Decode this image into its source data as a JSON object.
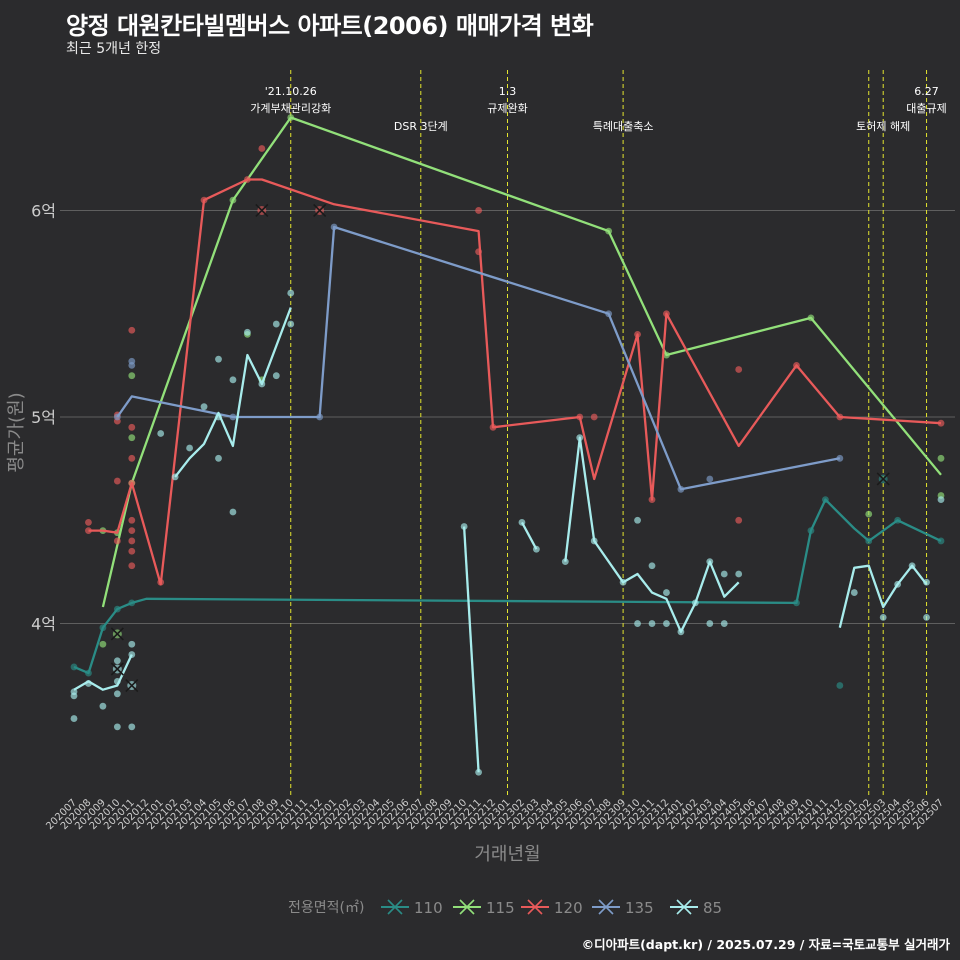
{
  "title": "양정 대원칸타빌멤버스 아파트(2006) 매매가격 변화",
  "subtitle": "최근 5개년 한정",
  "credit": "©디아파트(dapt.kr) / 2025.07.29 / 자료=국토교통부 실거래가",
  "chart_data": {
    "type": "line",
    "xlabel": "거래년월",
    "ylabel": "평균가(원)",
    "x": [
      "202007",
      "202008",
      "202009",
      "202010",
      "202011",
      "202012",
      "202101",
      "202102",
      "202103",
      "202104",
      "202105",
      "202106",
      "202107",
      "202108",
      "202109",
      "202110",
      "202111",
      "202112",
      "202201",
      "202202",
      "202203",
      "202204",
      "202205",
      "202206",
      "202207",
      "202208",
      "202209",
      "202210",
      "202211",
      "202212",
      "202301",
      "202302",
      "202303",
      "202304",
      "202305",
      "202306",
      "202307",
      "202308",
      "202309",
      "202310",
      "202311",
      "202312",
      "202401",
      "202402",
      "202403",
      "202404",
      "202405",
      "202406",
      "202407",
      "202408",
      "202409",
      "202410",
      "202411",
      "202412",
      "202501",
      "202502",
      "202503",
      "202504",
      "202505",
      "202506",
      "202507"
    ],
    "y_ticks": [
      {
        "value": 40000,
        "label": "4억"
      },
      {
        "value": 50000,
        "label": "5억"
      },
      {
        "value": 60000,
        "label": "6억"
      }
    ],
    "ylim": [
      31700,
      66800
    ],
    "grid": "horizontal",
    "legend": {
      "title": "전용면적(㎡)",
      "position": "bottom"
    },
    "colors": {
      "110": "#2a8c86",
      "115": "#92e07a",
      "120": "#e85a5a",
      "135": "#7e9cc9",
      "85": "#a8ecec",
      "event_line": "#e4e52e",
      "grid": "#5f5f5f",
      "text": "#cccccc"
    },
    "events": [
      {
        "x": "202110",
        "label": "'21.10.26\n가계부채관리강화"
      },
      {
        "x": "202207",
        "label": "DSR 3단계"
      },
      {
        "x": "202301",
        "label": "1.3\n규제완화"
      },
      {
        "x": "202309",
        "label": "특례대출축소"
      },
      {
        "x": "202502",
        "label": ""
      },
      {
        "x": "202503",
        "label": "토허제 해제"
      },
      {
        "x": "202506",
        "label": "6.27\n대출규제"
      }
    ],
    "series": [
      {
        "name": "110",
        "line": [
          [
            "202007",
            37900
          ],
          [
            "202008",
            37600
          ],
          [
            "202009",
            39800
          ],
          [
            "202010",
            40700
          ],
          [
            "202011",
            41000
          ],
          [
            "202012",
            41200
          ],
          [
            "202409",
            41000
          ],
          [
            "202410",
            44500
          ],
          [
            "202411",
            46000
          ],
          [
            "202501",
            44600
          ],
          [
            "202502",
            44000
          ],
          [
            "202504",
            45000
          ],
          [
            "202507",
            44000
          ]
        ],
        "points": [
          [
            "202007",
            37900
          ],
          [
            "202008",
            37600
          ],
          [
            "202009",
            39800
          ],
          [
            "202010",
            40700
          ],
          [
            "202011",
            41000
          ],
          [
            "202409",
            41000
          ],
          [
            "202410",
            44500
          ],
          [
            "202411",
            46000
          ],
          [
            "202412",
            37000
          ],
          [
            "202502",
            44000
          ],
          [
            "202504",
            45000
          ],
          [
            "202507",
            44000
          ]
        ],
        "markers": [
          [
            "202503",
            47000
          ]
        ]
      },
      {
        "name": "115",
        "line": [
          [
            "202009",
            40800
          ],
          [
            "202011",
            46800
          ],
          [
            "202106",
            60500
          ],
          [
            "202110",
            64500
          ],
          [
            "202308",
            59000
          ],
          [
            "202312",
            53000
          ],
          [
            "202410",
            54800
          ],
          [
            "202507",
            47200
          ]
        ],
        "points": [
          [
            "202009",
            39000
          ],
          [
            "202009",
            44500
          ],
          [
            "202010",
            44400
          ],
          [
            "202011",
            46800
          ],
          [
            "202011",
            49000
          ],
          [
            "202011",
            52000
          ],
          [
            "202106",
            60500
          ],
          [
            "202107",
            54000
          ],
          [
            "202108",
            51800
          ],
          [
            "202110",
            64500
          ],
          [
            "202308",
            59000
          ],
          [
            "202312",
            53000
          ],
          [
            "202410",
            54800
          ],
          [
            "202502",
            45300
          ],
          [
            "202507",
            48000
          ],
          [
            "202507",
            46200
          ]
        ],
        "markers": [
          [
            "202010",
            39500
          ]
        ]
      },
      {
        "name": "120",
        "line": [
          [
            "202008",
            44500
          ],
          [
            "202009",
            44500
          ],
          [
            "202010",
            44400
          ],
          [
            "202011",
            46800
          ],
          [
            "202101",
            41900
          ],
          [
            "202104",
            60500
          ],
          [
            "202107",
            61500
          ],
          [
            "202108",
            61500
          ],
          [
            "202201",
            60300
          ],
          [
            "202211",
            59000
          ],
          [
            "202212",
            49500
          ],
          [
            "202306",
            50000
          ],
          [
            "202307",
            47000
          ],
          [
            "202310",
            54000
          ],
          [
            "202311",
            46000
          ],
          [
            "202312",
            55000
          ],
          [
            "202405",
            48600
          ],
          [
            "202409",
            52500
          ],
          [
            "202412",
            50000
          ],
          [
            "202507",
            49700
          ]
        ],
        "points": [
          [
            "202008",
            44500
          ],
          [
            "202008",
            44900
          ],
          [
            "202010",
            44000
          ],
          [
            "202010",
            46900
          ],
          [
            "202010",
            49800
          ],
          [
            "202010",
            50100
          ],
          [
            "202011",
            42800
          ],
          [
            "202011",
            43500
          ],
          [
            "202011",
            44000
          ],
          [
            "202011",
            44500
          ],
          [
            "202011",
            45000
          ],
          [
            "202011",
            46800
          ],
          [
            "202011",
            48000
          ],
          [
            "202011",
            49500
          ],
          [
            "202011",
            54200
          ],
          [
            "202101",
            42000
          ],
          [
            "202104",
            60500
          ],
          [
            "202107",
            61500
          ],
          [
            "202108",
            63000
          ],
          [
            "202211",
            60000
          ],
          [
            "202211",
            58000
          ],
          [
            "202212",
            49500
          ],
          [
            "202306",
            50000
          ],
          [
            "202307",
            50000
          ],
          [
            "202310",
            54000
          ],
          [
            "202311",
            46000
          ],
          [
            "202312",
            55000
          ],
          [
            "202405",
            52300
          ],
          [
            "202405",
            45000
          ],
          [
            "202409",
            52500
          ],
          [
            "202412",
            50000
          ],
          [
            "202507",
            49700
          ]
        ],
        "markers": [
          [
            "202108",
            60000
          ],
          [
            "202112",
            60000
          ]
        ]
      },
      {
        "name": "135",
        "line": [
          [
            "202010",
            50000
          ],
          [
            "202011",
            51000
          ],
          [
            "202106",
            50000
          ],
          [
            "202112",
            50000
          ],
          [
            "202201",
            59200
          ],
          [
            "202308",
            55000
          ],
          [
            "202401",
            46500
          ],
          [
            "202412",
            48000
          ]
        ],
        "points": [
          [
            "202010",
            50000
          ],
          [
            "202011",
            52500
          ],
          [
            "202011",
            52700
          ],
          [
            "202106",
            50000
          ],
          [
            "202112",
            50000
          ],
          [
            "202201",
            59200
          ],
          [
            "202308",
            55000
          ],
          [
            "202401",
            46500
          ],
          [
            "202403",
            47000
          ],
          [
            "202412",
            48000
          ]
        ],
        "markers": []
      },
      {
        "name": "85",
        "line": [
          [
            "202007",
            36800
          ],
          [
            "202008",
            37200
          ],
          [
            "202009",
            36800
          ],
          [
            "202010",
            37000
          ],
          [
            "202011",
            38500
          ]
        ],
        "line2": [
          [
            "202102",
            47100
          ],
          [
            "202103",
            48000
          ],
          [
            "202104",
            48700
          ],
          [
            "202105",
            50200
          ],
          [
            "202106",
            48600
          ],
          [
            "202107",
            53000
          ],
          [
            "202108",
            51600
          ],
          [
            "202110",
            55300
          ]
        ],
        "line3": [
          [
            "202210",
            44700
          ],
          [
            "202211",
            32800
          ]
        ],
        "line4": [
          [
            "202302",
            44900
          ],
          [
            "202303",
            43600
          ]
        ],
        "line5": [
          [
            "202305",
            43000
          ],
          [
            "202306",
            49000
          ],
          [
            "202307",
            44000
          ],
          [
            "202309",
            42000
          ],
          [
            "202310",
            42400
          ],
          [
            "202311",
            41500
          ],
          [
            "202312",
            41200
          ],
          [
            "202401",
            39600
          ],
          [
            "202402",
            41000
          ],
          [
            "202403",
            43000
          ],
          [
            "202404",
            41300
          ],
          [
            "202405",
            42000
          ]
        ],
        "line6": [
          [
            "202412",
            39800
          ],
          [
            "202501",
            42700
          ],
          [
            "202502",
            42800
          ],
          [
            "202503",
            40800
          ],
          [
            "202504",
            41900
          ],
          [
            "202505",
            42800
          ],
          [
            "202506",
            41900
          ]
        ],
        "points": [
          [
            "202007",
            35400
          ],
          [
            "202007",
            36500
          ],
          [
            "202007",
            36700
          ],
          [
            "202008",
            37100
          ],
          [
            "202009",
            36000
          ],
          [
            "202010",
            35000
          ],
          [
            "202010",
            36600
          ],
          [
            "202010",
            37200
          ],
          [
            "202010",
            38200
          ],
          [
            "202011",
            35000
          ],
          [
            "202011",
            38500
          ],
          [
            "202011",
            39000
          ],
          [
            "202102",
            47100
          ],
          [
            "202101",
            49200
          ],
          [
            "202103",
            48500
          ],
          [
            "202104",
            50500
          ],
          [
            "202105",
            50000
          ],
          [
            "202105",
            52800
          ],
          [
            "202105",
            48000
          ],
          [
            "202106",
            45400
          ],
          [
            "202106",
            51800
          ],
          [
            "202107",
            54100
          ],
          [
            "202108",
            51600
          ],
          [
            "202109",
            54500
          ],
          [
            "202109",
            52000
          ],
          [
            "202110",
            54500
          ],
          [
            "202110",
            56000
          ],
          [
            "202210",
            44700
          ],
          [
            "202211",
            32800
          ],
          [
            "202302",
            44900
          ],
          [
            "202303",
            43600
          ],
          [
            "202305",
            43000
          ],
          [
            "202306",
            49000
          ],
          [
            "202307",
            44000
          ],
          [
            "202309",
            42000
          ],
          [
            "202310",
            40000
          ],
          [
            "202310",
            45000
          ],
          [
            "202311",
            40000
          ],
          [
            "202311",
            42800
          ],
          [
            "202312",
            40000
          ],
          [
            "202312",
            41500
          ],
          [
            "202401",
            39600
          ],
          [
            "202402",
            41000
          ],
          [
            "202403",
            40000
          ],
          [
            "202403",
            43000
          ],
          [
            "202404",
            40000
          ],
          [
            "202404",
            42400
          ],
          [
            "202405",
            42400
          ],
          [
            "202501",
            41500
          ],
          [
            "202503",
            40300
          ],
          [
            "202504",
            41900
          ],
          [
            "202505",
            42800
          ],
          [
            "202506",
            40300
          ],
          [
            "202506",
            42000
          ],
          [
            "202507",
            46000
          ]
        ],
        "markers": [
          [
            "202010",
            37800
          ],
          [
            "202011",
            37000
          ]
        ]
      }
    ]
  }
}
